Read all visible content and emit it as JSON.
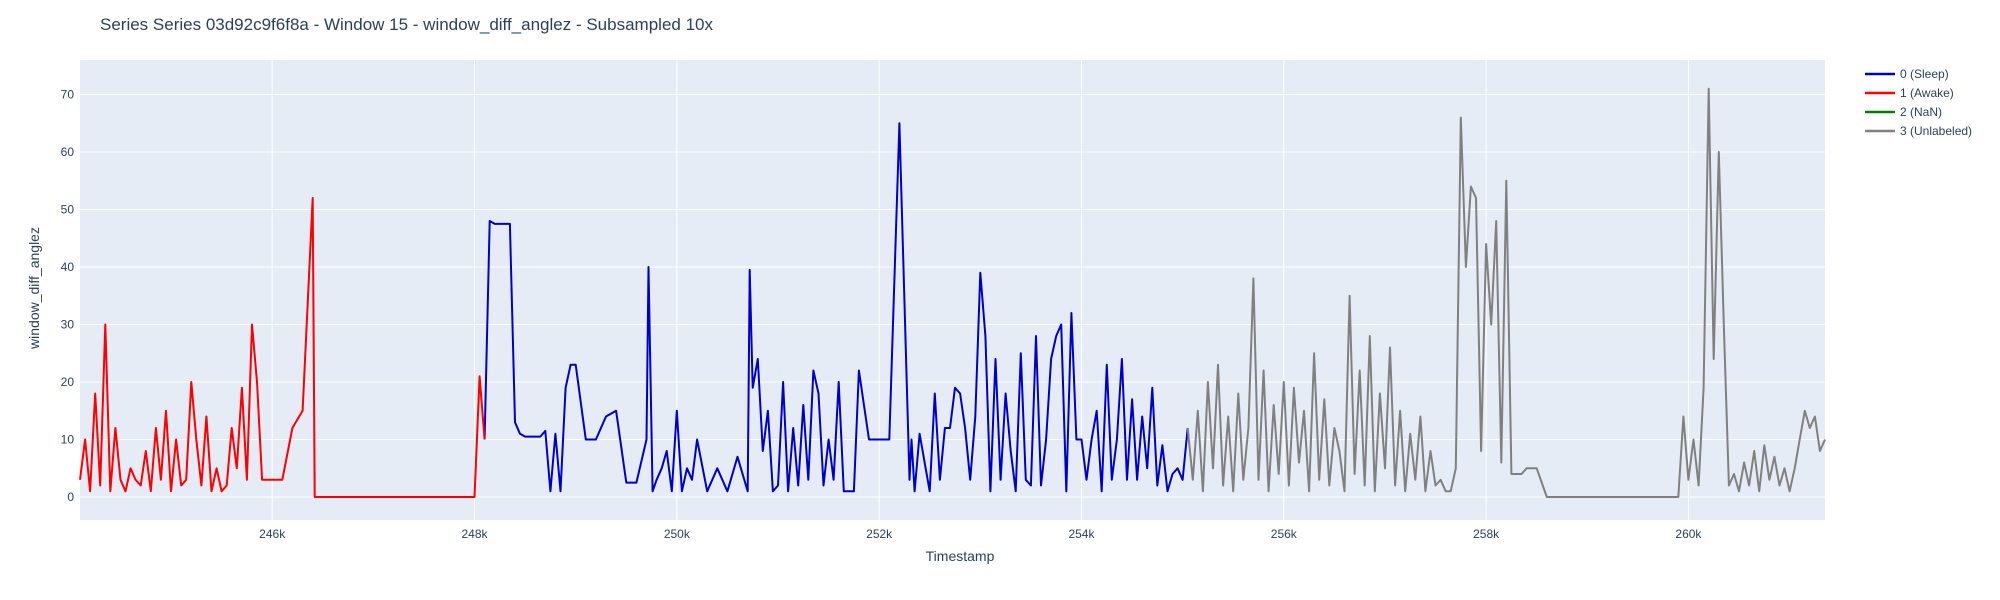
{
  "chart_data": {
    "type": "line",
    "title": "Series Series 03d92c9f6f8a - Window 15 - window_diff_anglez - Subsampled 10x",
    "xlabel": "Timestamp",
    "ylabel": "window_diff_anglez",
    "xlim": [
      244100,
      261350
    ],
    "ylim": [
      -4,
      76
    ],
    "x_ticks": [
      {
        "value": 246000,
        "label": "246k"
      },
      {
        "value": 248000,
        "label": "248k"
      },
      {
        "value": 250000,
        "label": "250k"
      },
      {
        "value": 252000,
        "label": "252k"
      },
      {
        "value": 254000,
        "label": "254k"
      },
      {
        "value": 256000,
        "label": "256k"
      },
      {
        "value": 258000,
        "label": "258k"
      },
      {
        "value": 260000,
        "label": "260k"
      }
    ],
    "y_ticks": [
      {
        "value": 0,
        "label": "0"
      },
      {
        "value": 10,
        "label": "10"
      },
      {
        "value": 20,
        "label": "20"
      },
      {
        "value": 30,
        "label": "30"
      },
      {
        "value": 40,
        "label": "40"
      },
      {
        "value": 50,
        "label": "50"
      },
      {
        "value": 60,
        "label": "60"
      },
      {
        "value": 70,
        "label": "70"
      }
    ],
    "grid": true,
    "legend_position": "top-right",
    "colors": {
      "plot_bg": "#e5ecf6",
      "grid": "#ffffff",
      "text": "#2a3f5f"
    },
    "series": [
      {
        "name": "0 (Sleep)",
        "color": "#0000cc",
        "x": [
          248100,
          248150,
          248200,
          248300,
          248350,
          248400,
          248450,
          248500,
          248600,
          248650,
          248700,
          248750,
          248800,
          248850,
          248900,
          248950,
          249000,
          249100,
          249200,
          249300,
          249400,
          249500,
          249600,
          249700,
          249720,
          249760,
          249800,
          249850,
          249900,
          249950,
          250000,
          250050,
          250100,
          250150,
          250200,
          250300,
          250400,
          250500,
          250600,
          250700,
          250720,
          250750,
          250800,
          250850,
          250900,
          250950,
          251000,
          251050,
          251100,
          251150,
          251200,
          251250,
          251300,
          251350,
          251400,
          251450,
          251500,
          251550,
          251600,
          251650,
          251700,
          251750,
          251800,
          251900,
          252000,
          252100,
          252200,
          252300,
          252320,
          252350,
          252400,
          252500,
          252550,
          252600,
          252650,
          252700,
          252750,
          252800,
          252850,
          252900,
          252950,
          253000,
          253050,
          253100,
          253150,
          253200,
          253250,
          253300,
          253350,
          253400,
          253450,
          253500,
          253550,
          253600,
          253650,
          253700,
          253750,
          253800,
          253850,
          253900,
          253950,
          254000,
          254050,
          254100,
          254150,
          254200,
          254250,
          254300,
          254350,
          254400,
          254450,
          254500,
          254550,
          254600,
          254650,
          254700,
          254750,
          254800,
          254850,
          254900,
          254950,
          255000,
          255050
        ],
        "values": [
          10,
          48,
          47.5,
          47.5,
          47.5,
          13,
          11,
          10.5,
          10.5,
          10.5,
          11.5,
          1,
          11,
          1,
          19,
          23,
          23,
          10,
          10,
          14,
          15,
          2.5,
          2.5,
          10,
          40,
          1,
          3,
          5,
          8,
          1,
          15,
          1,
          5,
          3,
          10,
          1,
          5,
          1,
          7,
          1,
          39.5,
          19,
          24,
          8,
          15,
          1,
          2,
          20,
          1,
          12,
          2,
          16,
          3,
          22,
          18,
          2,
          10,
          3,
          20,
          1,
          1,
          1,
          22,
          10,
          10,
          10,
          65,
          3,
          10,
          1,
          11,
          1,
          18,
          3,
          12,
          12,
          19,
          18,
          12,
          3,
          14,
          39,
          28,
          1,
          24,
          3,
          18,
          8,
          1,
          25,
          3,
          2,
          28,
          2,
          10,
          24,
          28,
          30,
          1,
          32,
          10,
          10,
          3,
          10,
          15,
          1,
          23,
          3,
          10,
          24,
          3,
          17,
          3,
          14,
          5,
          19,
          2,
          9,
          1,
          4,
          5,
          3,
          12
        ],
        "x_breaks": "connected"
      },
      {
        "name": "1 (Awake)",
        "color": "#ff0000",
        "x": [
          244100,
          244150,
          244200,
          244250,
          244300,
          244350,
          244400,
          244450,
          244500,
          244550,
          244600,
          244650,
          244700,
          244750,
          244800,
          244850,
          244900,
          244950,
          245000,
          245050,
          245100,
          245150,
          245200,
          245250,
          245300,
          245350,
          245400,
          245450,
          245500,
          245550,
          245600,
          245650,
          245700,
          245750,
          245800,
          245850,
          245900,
          246000,
          246100,
          246200,
          246300,
          246400,
          246420,
          246450,
          246500,
          247000,
          247500,
          247900,
          248000,
          248050,
          248100
        ],
        "values": [
          3,
          10,
          1,
          18,
          2,
          30,
          1,
          12,
          3,
          1,
          5,
          3,
          2,
          8,
          1,
          12,
          3,
          15,
          1,
          10,
          2,
          3,
          20,
          10,
          2,
          14,
          1,
          5,
          1,
          2,
          12,
          5,
          19,
          3,
          30,
          20,
          3,
          3,
          3,
          12,
          15,
          52,
          0,
          0,
          0,
          0,
          0,
          0,
          0,
          21,
          10
        ],
        "x_breaks": "connected"
      },
      {
        "name": "2 (NaN)",
        "color": "#008000",
        "x": [],
        "values": []
      },
      {
        "name": "3 (Unlabeled)",
        "color": "#808080",
        "x": [
          255050,
          255100,
          255150,
          255200,
          255250,
          255300,
          255350,
          255400,
          255450,
          255500,
          255550,
          255600,
          255650,
          255700,
          255750,
          255800,
          255850,
          255900,
          255950,
          256000,
          256050,
          256100,
          256150,
          256200,
          256250,
          256300,
          256350,
          256400,
          256450,
          256500,
          256550,
          256600,
          256650,
          256700,
          256750,
          256800,
          256850,
          256900,
          256950,
          257000,
          257050,
          257100,
          257150,
          257200,
          257250,
          257300,
          257350,
          257400,
          257450,
          257500,
          257550,
          257600,
          257650,
          257700,
          257750,
          257800,
          257850,
          257900,
          257950,
          258000,
          258050,
          258100,
          258150,
          258200,
          258250,
          258300,
          258350,
          258400,
          258500,
          258600,
          258700,
          259000,
          259500,
          259900,
          259950,
          260000,
          260050,
          260100,
          260150,
          260200,
          260250,
          260300,
          260350,
          260400,
          260450,
          260500,
          260550,
          260600,
          260650,
          260700,
          260750,
          260800,
          260850,
          260900,
          260950,
          261000,
          261050,
          261100,
          261150,
          261200,
          261250,
          261300,
          261350
        ],
        "values": [
          12,
          3,
          15,
          1,
          20,
          5,
          23,
          2,
          14,
          1,
          18,
          3,
          12,
          38,
          3,
          22,
          1,
          16,
          4,
          20,
          2,
          19,
          6,
          15,
          1,
          25,
          3,
          17,
          2,
          12,
          8,
          1,
          35,
          4,
          22,
          2,
          28,
          1,
          18,
          5,
          26,
          2,
          15,
          1,
          11,
          3,
          14,
          1,
          8,
          2,
          3,
          1,
          1,
          5,
          66,
          40,
          54,
          52,
          8,
          44,
          30,
          48,
          6,
          55,
          4,
          4,
          4,
          5,
          5,
          0,
          0,
          0,
          0,
          0,
          14,
          3,
          10,
          2,
          19,
          71,
          24,
          60,
          30,
          2,
          4,
          1,
          6,
          2,
          8,
          1,
          9,
          3,
          7,
          2,
          5,
          1,
          5,
          10,
          15,
          12,
          14,
          8,
          10
        ],
        "x_breaks": "connected"
      }
    ]
  }
}
